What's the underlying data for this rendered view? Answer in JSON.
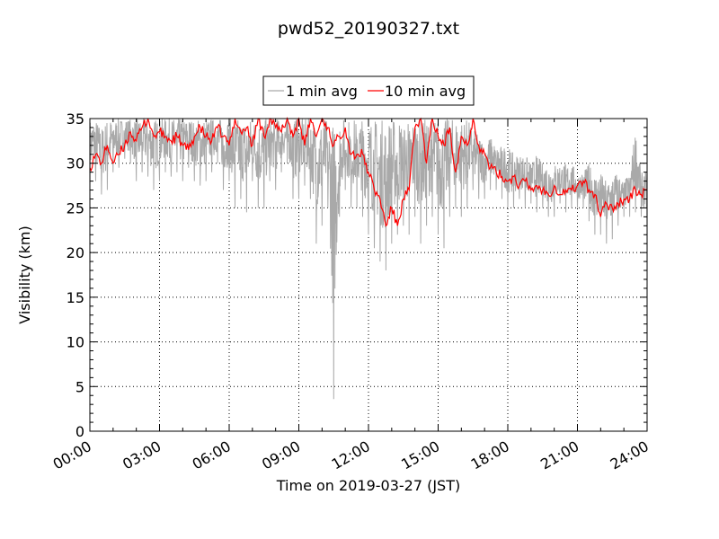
{
  "chart_data": {
    "type": "line",
    "title": "pwd52_20190327.txt",
    "xlabel": "Time on 2019-03-27 (JST)",
    "ylabel": "Visibility (km)",
    "xlim": [
      "00:00",
      "24:00"
    ],
    "ylim": [
      0,
      35
    ],
    "xticks": [
      "00:00",
      "03:00",
      "06:00",
      "09:00",
      "12:00",
      "15:00",
      "18:00",
      "21:00",
      "24:00"
    ],
    "yticks": [
      "0",
      "5",
      "10",
      "15",
      "20",
      "25",
      "30",
      "35"
    ],
    "grid": true,
    "legend_position": "top-center, above plot",
    "series": [
      {
        "name": "1 min avg",
        "color": "#a9a9a9",
        "x_hours": [
          0,
          0.25,
          0.5,
          0.75,
          1,
          1.25,
          1.5,
          1.75,
          2,
          2.25,
          2.5,
          2.75,
          3,
          3.25,
          3.5,
          3.75,
          4,
          4.25,
          4.5,
          4.75,
          5,
          5.25,
          5.5,
          5.75,
          6,
          6.25,
          6.5,
          6.75,
          7,
          7.25,
          7.5,
          7.75,
          8,
          8.25,
          8.5,
          8.75,
          9,
          9.25,
          9.5,
          9.75,
          10,
          10.25,
          10.5,
          10.75,
          11,
          11.25,
          11.5,
          11.75,
          12,
          12.25,
          12.5,
          12.75,
          13,
          13.25,
          13.5,
          13.75,
          14,
          14.25,
          14.5,
          14.75,
          15,
          15.25,
          15.5,
          15.75,
          16,
          16.25,
          16.5,
          16.75,
          17,
          17.25,
          17.5,
          17.75,
          18,
          18.25,
          18.5,
          18.75,
          19,
          19.25,
          19.5,
          19.75,
          20,
          20.25,
          20.5,
          20.75,
          21,
          21.25,
          21.5,
          21.75,
          22,
          22.25,
          22.5,
          22.75,
          23,
          23.25,
          23.5,
          23.75,
          24
        ],
        "low": [
          27,
          28,
          26.5,
          27,
          29,
          29.5,
          30.5,
          30,
          28,
          29,
          28.5,
          27,
          28,
          29,
          28.5,
          29,
          28,
          29.5,
          28,
          27.5,
          28,
          29,
          30,
          27,
          28,
          25,
          26,
          24.5,
          28,
          25,
          25,
          28,
          27,
          29,
          30,
          26,
          26,
          27.5,
          26,
          21,
          23,
          25,
          3.6,
          24,
          27,
          25,
          25,
          24,
          22,
          20.5,
          19,
          18,
          21,
          22,
          23,
          22,
          24,
          21,
          23,
          24,
          22,
          20.5,
          24,
          25,
          24,
          25,
          27,
          26,
          26,
          27,
          27,
          26,
          25,
          25,
          26,
          25,
          25.5,
          24.5,
          25,
          24,
          24,
          25.5,
          24.5,
          25,
          25,
          25,
          23.5,
          22,
          22,
          21,
          21.5,
          23,
          24,
          24,
          24.5,
          24,
          23
        ],
        "high": [
          35,
          35,
          34,
          35,
          35,
          35,
          35,
          35,
          35,
          35,
          35,
          35,
          35,
          35,
          35,
          35,
          35,
          35,
          35,
          35,
          35,
          35,
          35,
          35,
          35,
          35,
          35,
          35,
          35,
          35,
          35,
          35,
          35,
          35,
          35,
          35,
          35,
          35,
          35,
          35,
          35,
          35,
          35,
          35,
          35,
          35,
          35,
          35,
          35,
          35,
          35,
          35,
          35,
          35,
          35,
          35,
          35,
          35,
          35,
          35,
          35,
          35,
          35,
          35,
          35,
          35,
          34,
          33,
          33,
          33,
          32,
          32,
          32,
          31,
          31,
          31,
          30,
          31,
          30,
          30,
          30,
          30,
          30,
          30,
          29,
          29,
          30,
          29,
          29,
          28,
          29,
          29,
          28,
          29,
          34,
          29,
          29
        ]
      },
      {
        "name": "10 min avg",
        "color": "#ff0000",
        "x_hours": [
          0,
          0.25,
          0.5,
          0.75,
          1,
          1.25,
          1.5,
          1.75,
          2,
          2.25,
          2.5,
          2.75,
          3,
          3.25,
          3.5,
          3.75,
          4,
          4.25,
          4.5,
          4.75,
          5,
          5.25,
          5.5,
          5.75,
          6,
          6.25,
          6.5,
          6.75,
          7,
          7.25,
          7.5,
          7.75,
          8,
          8.25,
          8.5,
          8.75,
          9,
          9.25,
          9.5,
          9.75,
          10,
          10.25,
          10.5,
          10.75,
          11,
          11.25,
          11.5,
          11.75,
          12,
          12.25,
          12.5,
          12.75,
          13,
          13.25,
          13.5,
          13.75,
          14,
          14.25,
          14.5,
          14.75,
          15,
          15.25,
          15.5,
          15.75,
          16,
          16.25,
          16.5,
          16.75,
          17,
          17.25,
          17.5,
          17.75,
          18,
          18.25,
          18.5,
          18.75,
          19,
          19.25,
          19.5,
          19.75,
          20,
          20.25,
          20.5,
          20.75,
          21,
          21.25,
          21.5,
          21.75,
          22,
          22.25,
          22.5,
          22.75,
          23,
          23.25,
          23.5,
          23.75,
          24
        ],
        "values": [
          29.5,
          31,
          30,
          32,
          30,
          31,
          32,
          33.5,
          32.5,
          34,
          35,
          33,
          33.5,
          33,
          32.5,
          33,
          32,
          31.5,
          33,
          34,
          33,
          32.5,
          34,
          33,
          32,
          35,
          33.5,
          34,
          32,
          35,
          33,
          35,
          34,
          33.5,
          35,
          33,
          35,
          32,
          35,
          33,
          35,
          34,
          32,
          33,
          34,
          31,
          31,
          31,
          29,
          27,
          26,
          23,
          25,
          23,
          26,
          27,
          34,
          35,
          30,
          35,
          33,
          32,
          34,
          29,
          33,
          32,
          35,
          32,
          31,
          29.5,
          29,
          28.5,
          28,
          28.5,
          27.5,
          28,
          27,
          27.5,
          27,
          26.5,
          27.5,
          26.5,
          27,
          27,
          27.5,
          28,
          27,
          26.5,
          24,
          25.5,
          25,
          25.5,
          26,
          26,
          27,
          26.5,
          27
        ]
      }
    ]
  }
}
